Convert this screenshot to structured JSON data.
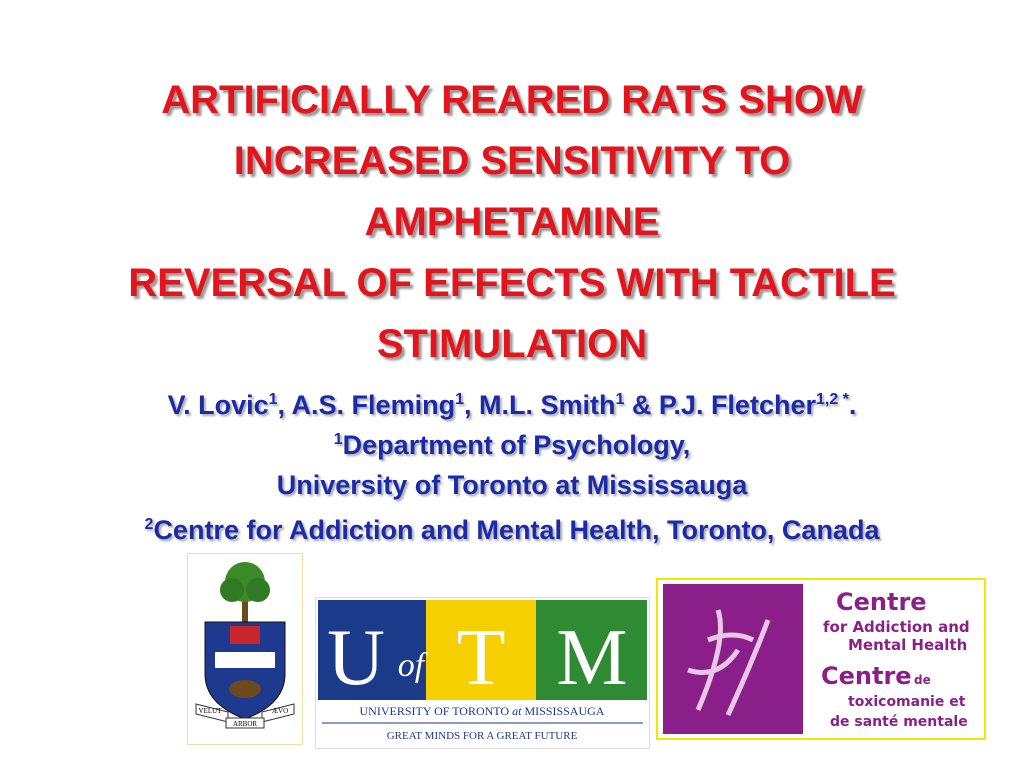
{
  "title_lines": [
    "ARTIFICIALLY REARED RATS SHOW",
    "INCREASED SENSITIVITY TO",
    "AMPHETAMINE",
    "REVERSAL OF EFFECTS WITH TACTILE",
    "STIMULATION"
  ],
  "authors": [
    {
      "text": "V. Lovic",
      "sup": "1"
    },
    {
      "text": ", A.S. Fleming",
      "sup": "1"
    },
    {
      "text": ", M.L. Smith",
      "sup": "1"
    },
    {
      "text": " & P.J. Fletcher",
      "sup": "1,2 *"
    },
    {
      "text": "."
    }
  ],
  "affiliations": [
    {
      "sup": "1",
      "text": "Department of Psychology,"
    },
    {
      "text": "University of Toronto at Mississauga"
    },
    {
      "sup": "2",
      "text": "Centre for Addiction and Mental Health, Toronto, Canada"
    }
  ],
  "crest": {
    "motto": [
      "VELUT",
      "ARBOR",
      "ÆVO"
    ]
  },
  "utm_logo": {
    "letters": [
      "U",
      "of",
      "T",
      "M"
    ],
    "name": [
      "UNIVERSITY OF TORONTO",
      "at",
      "MISSISSAUGA"
    ],
    "slogan": "GREAT MINDS FOR A GREAT FUTURE"
  },
  "camh_logo": {
    "lines": [
      "Centre",
      "for Addiction and",
      "Mental Health",
      "Centre",
      "de",
      "toxicomanie et",
      "de santé mentale"
    ]
  }
}
